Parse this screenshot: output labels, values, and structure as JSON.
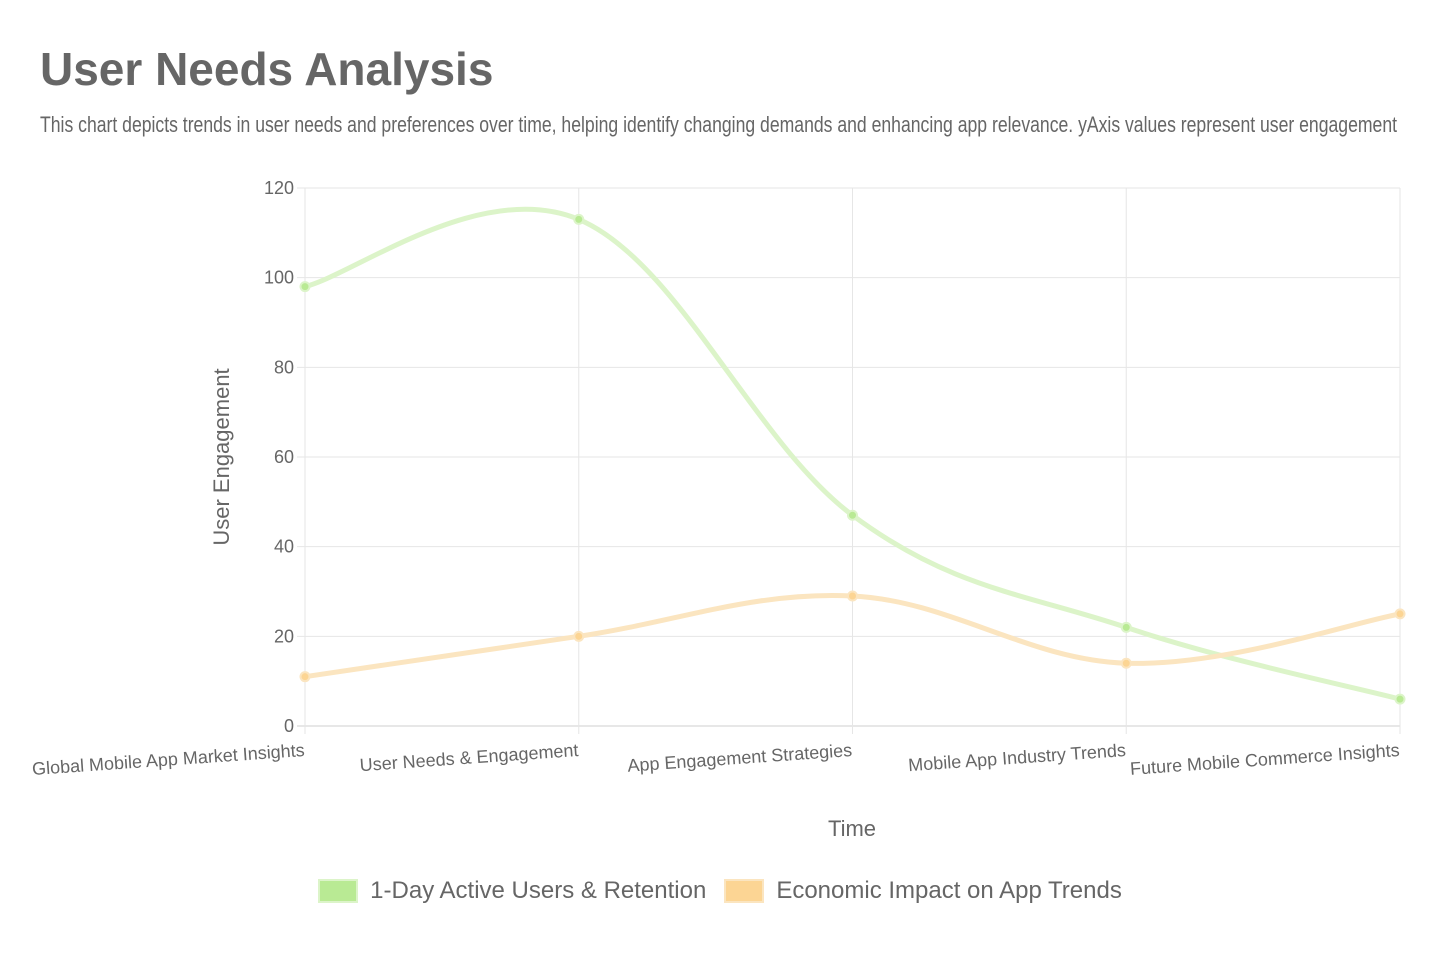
{
  "chart_data": {
    "type": "line",
    "title": "User Needs Analysis",
    "subtitle": "This chart depicts trends in user needs and preferences over time, helping identify changing demands and enhancing app relevance. yAxis values represent user engagement",
    "xlabel": "Time",
    "ylabel": "User Engagement",
    "categories": [
      "Global Mobile App Market Insights",
      "User Needs & Engagement",
      "App Engagement Strategies",
      "Mobile App Industry Trends",
      "Future Mobile Commerce Insights"
    ],
    "ylim": [
      0,
      120
    ],
    "yticks": [
      "0",
      "20",
      "40",
      "60",
      "80",
      "100",
      "120"
    ],
    "grid": true,
    "legend_position": "bottom",
    "series": [
      {
        "name": "1-Day Active Users & Retention",
        "values": [
          98,
          113,
          47,
          22,
          6
        ],
        "color": "#b9ea94",
        "line_color": "#dcf4c9"
      },
      {
        "name": "Economic Impact on App Trends",
        "values": [
          11,
          20,
          29,
          14,
          25
        ],
        "color": "#fcd594",
        "line_color": "#fbe5c0"
      }
    ]
  }
}
